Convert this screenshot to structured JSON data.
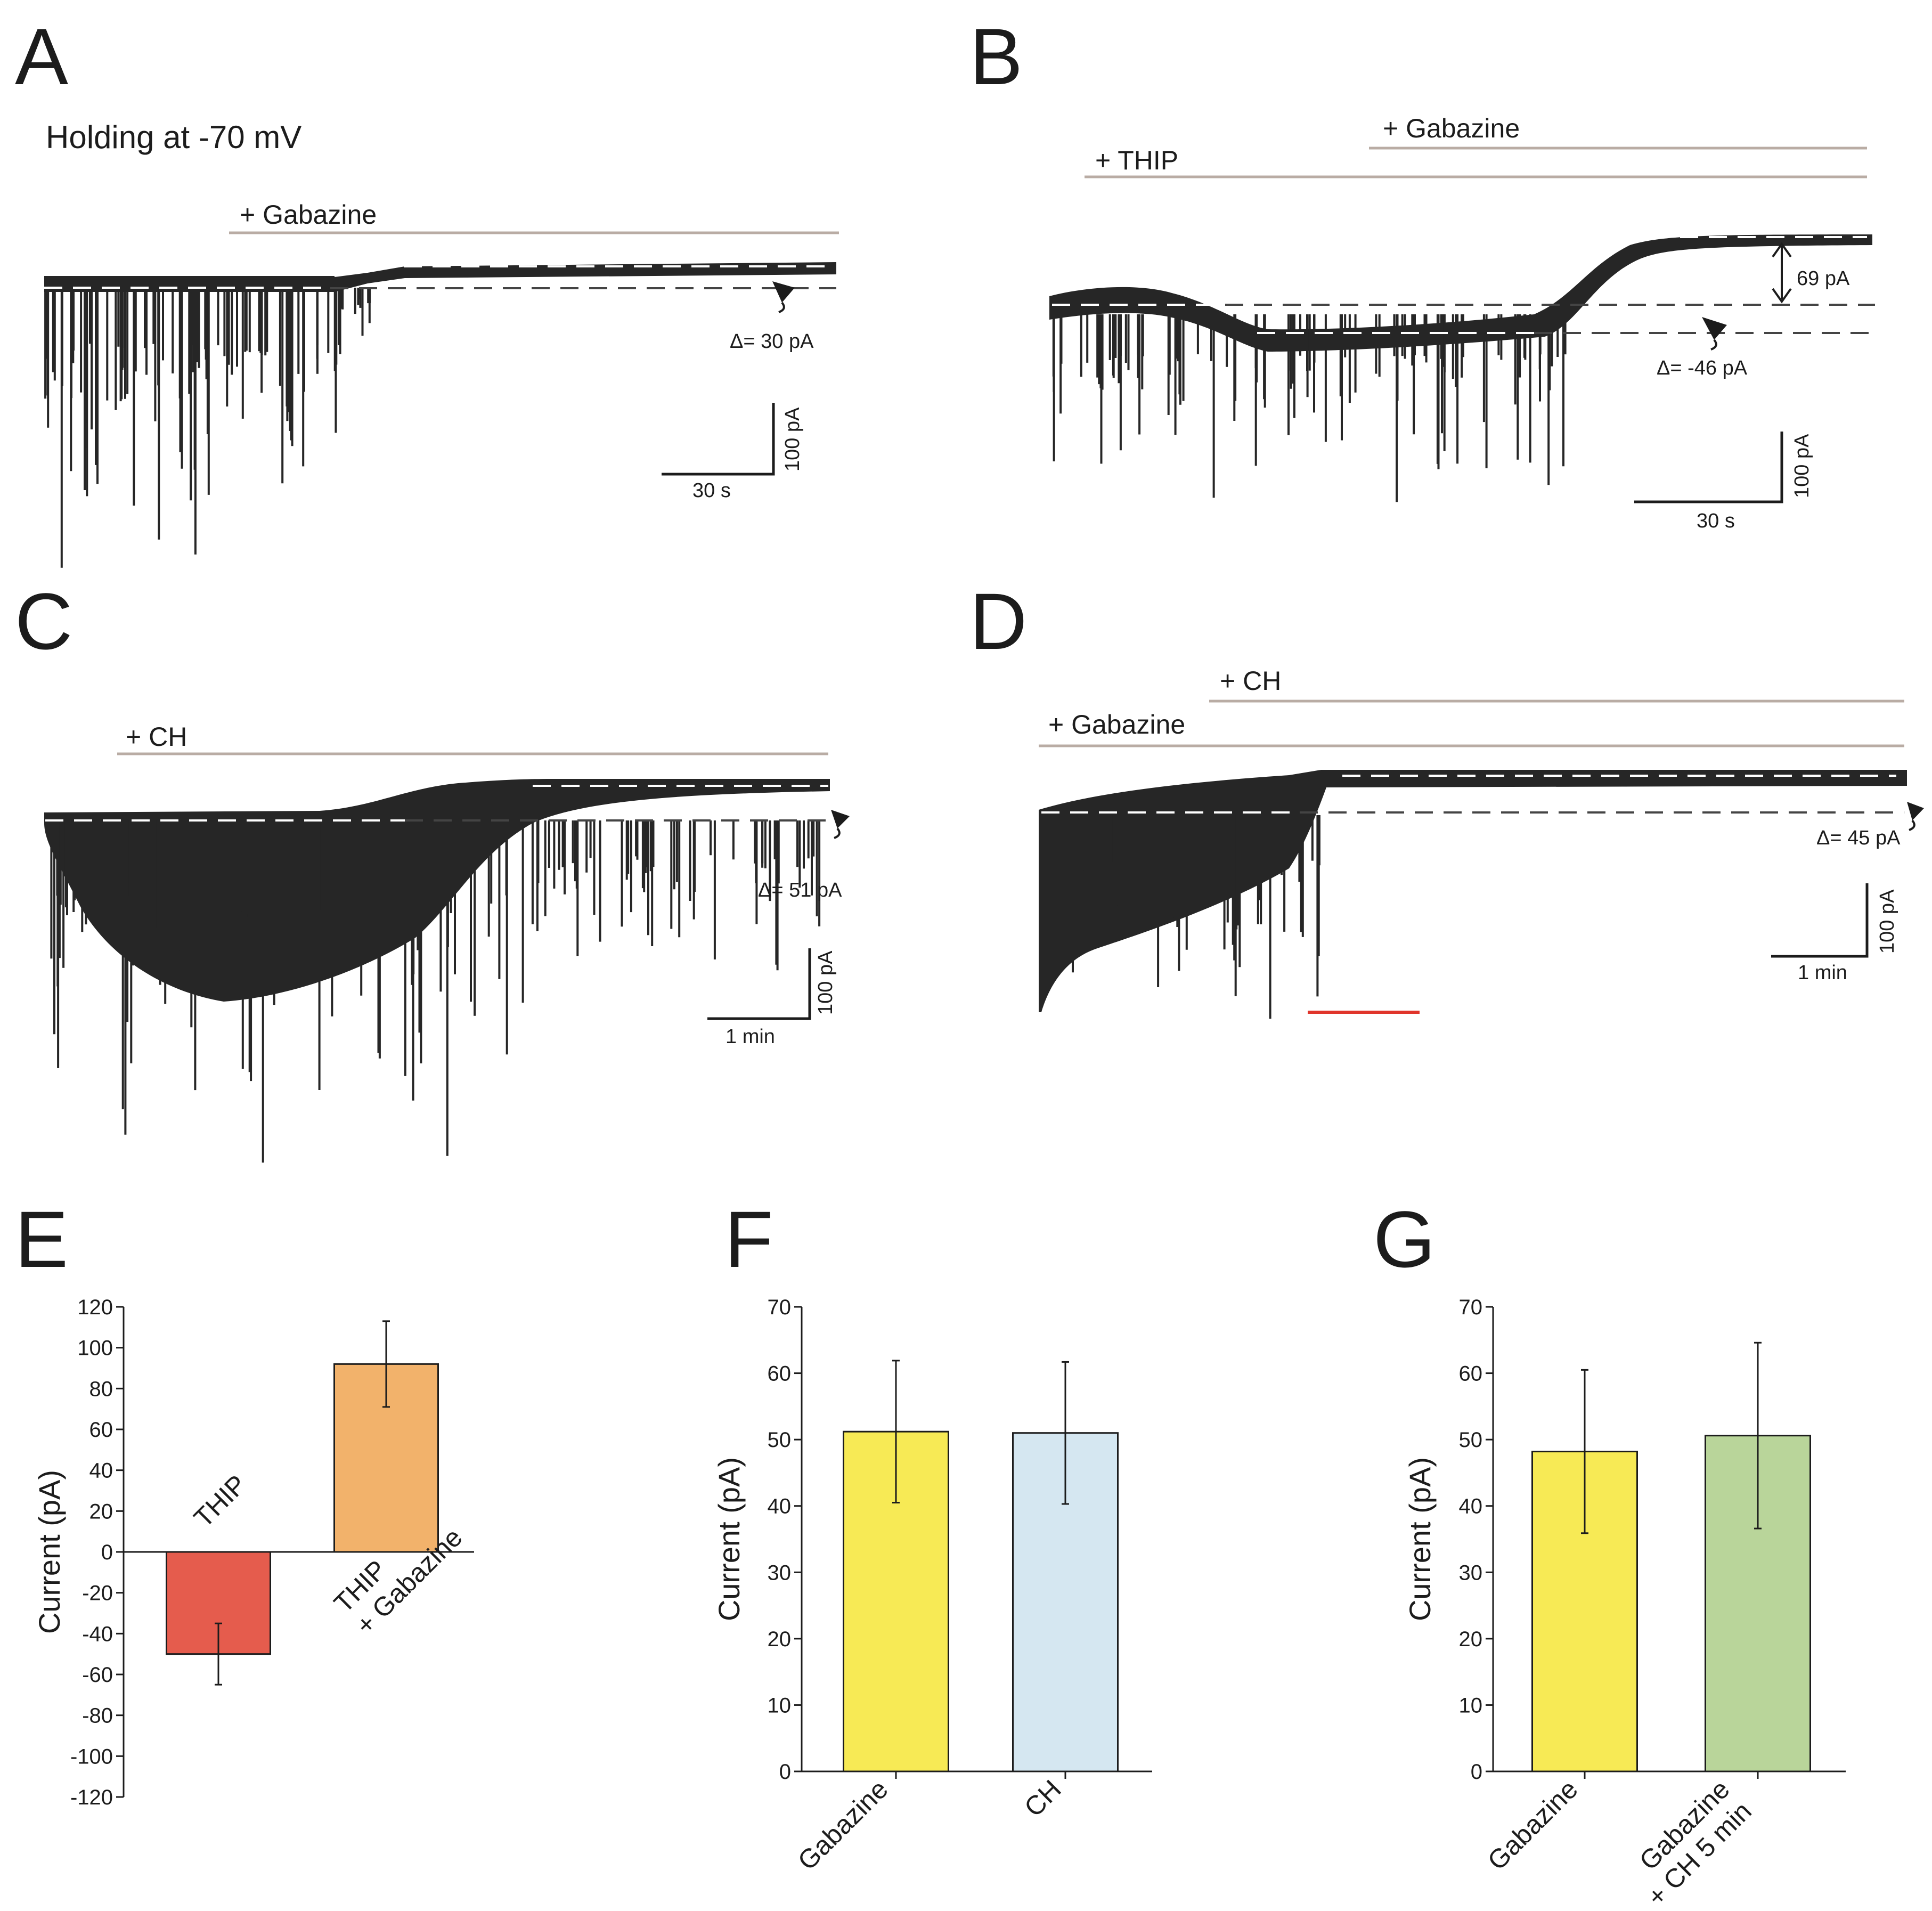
{
  "panels": {
    "A": {
      "label": "A",
      "holding": "Holding at -70 mV",
      "drug": "+ Gabazine",
      "delta": "Δ= 30 pA",
      "scale_y": "100 pA",
      "scale_x": "30 s"
    },
    "B": {
      "label": "B",
      "drug_thip": "+ THIP",
      "drug_gabazine": "+ Gabazine",
      "delta": "Δ= -46 pA",
      "arrow_value": "69 pA",
      "scale_y": "100 pA",
      "scale_x": "30 s"
    },
    "C": {
      "label": "C",
      "drug": "+ CH",
      "delta": "Δ= 51 pA",
      "scale_y": "100 pA",
      "scale_x": "1 min"
    },
    "D": {
      "label": "D",
      "drug_gabazine": "+ Gabazine",
      "drug_ch": "+ CH",
      "delta": "Δ= 45 pA",
      "scale_y": "100 pA",
      "scale_x": "1 min"
    },
    "E": {
      "label": "E"
    },
    "F": {
      "label": "F"
    },
    "G": {
      "label": "G"
    }
  },
  "colors": {
    "trace": "#262626",
    "drug_bar": "#b9aca4",
    "red_bar": "#e0352b",
    "thip": "#e55c4d",
    "thip_gabazine": "#f2b26b",
    "gabazine": "#f7ea55",
    "ch": "#d5e7f1",
    "gabazine_ch5": "#b9d59a"
  },
  "chart_data": [
    {
      "panel": "E",
      "type": "bar",
      "categories": [
        "THIP",
        "THIP\n+ Gabazine"
      ],
      "values": [
        -50,
        92
      ],
      "errors": [
        15,
        21
      ],
      "ylabel": "Current (pA)",
      "ylim": [
        -120,
        120
      ],
      "yticks": [
        -120,
        -100,
        -80,
        -60,
        -40,
        -20,
        0,
        20,
        40,
        60,
        80,
        100,
        120
      ]
    },
    {
      "panel": "F",
      "type": "bar",
      "categories": [
        "Gabazine",
        "CH"
      ],
      "values": [
        51.2,
        51.0
      ],
      "errors": [
        10.7,
        10.7
      ],
      "ylabel": "Current (pA)",
      "ylim": [
        0,
        70
      ],
      "yticks": [
        0,
        10,
        20,
        30,
        40,
        50,
        60,
        70
      ]
    },
    {
      "panel": "G",
      "type": "bar",
      "categories": [
        "Gabazine",
        "Gabazine\n+ CH 5 min"
      ],
      "values": [
        48.2,
        50.6
      ],
      "errors": [
        12.3,
        14.0
      ],
      "ylabel": "Current (pA)",
      "ylim": [
        0,
        70
      ],
      "yticks": [
        0,
        10,
        20,
        30,
        40,
        50,
        60,
        70
      ]
    }
  ]
}
